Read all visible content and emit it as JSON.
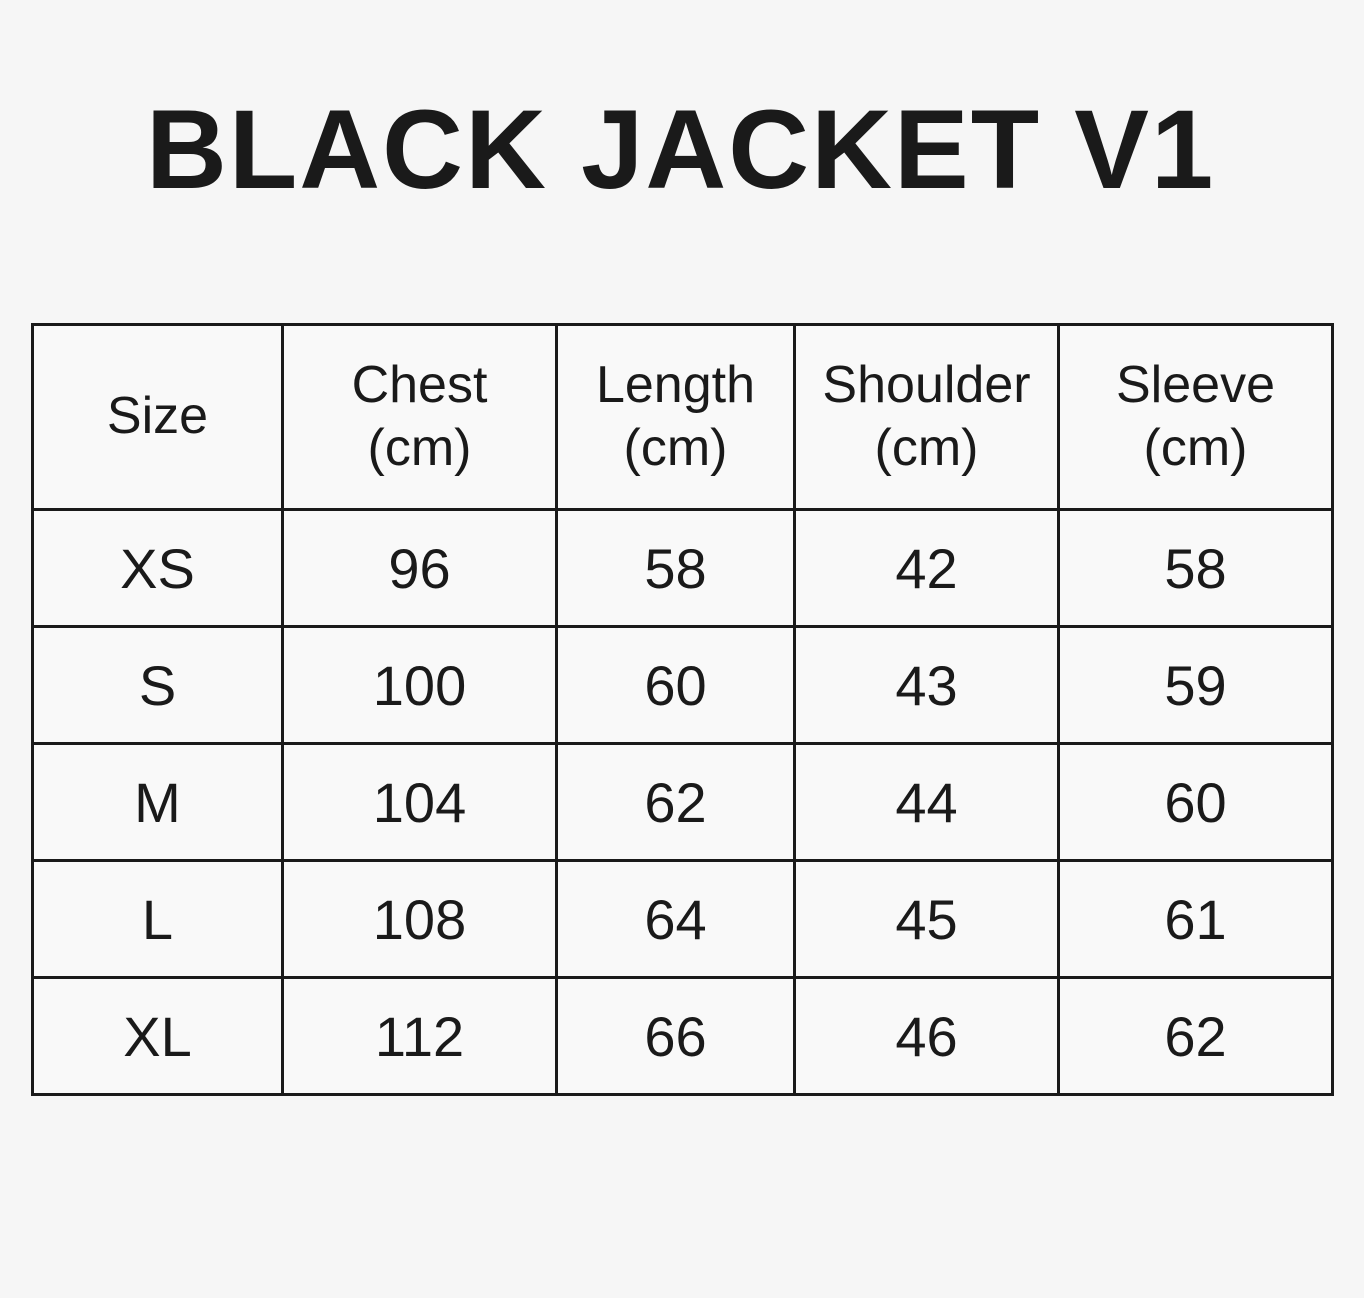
{
  "page": {
    "title": "BLACK JACKET V1",
    "background_color": "#f6f6f6",
    "text_color": "#1a1a1a",
    "border_color": "#1a1a1a"
  },
  "table": {
    "headers": [
      {
        "label": "Size",
        "unit": ""
      },
      {
        "label": "Chest",
        "unit": "(cm)"
      },
      {
        "label": "Length",
        "unit": "(cm)"
      },
      {
        "label": "Shoulder",
        "unit": "(cm)"
      },
      {
        "label": "Sleeve",
        "unit": "(cm)"
      }
    ],
    "rows": [
      [
        "XS",
        "96",
        "58",
        "42",
        "58"
      ],
      [
        "S",
        "100",
        "60",
        "43",
        "59"
      ],
      [
        "M",
        "104",
        "62",
        "44",
        "60"
      ],
      [
        "L",
        "108",
        "64",
        "45",
        "61"
      ],
      [
        "XL",
        "112",
        "66",
        "46",
        "62"
      ]
    ]
  },
  "chart_data": {
    "type": "table",
    "title": "BLACK JACKET V1",
    "columns": [
      "Size",
      "Chest (cm)",
      "Length (cm)",
      "Shoulder (cm)",
      "Sleeve (cm)"
    ],
    "rows": [
      [
        "XS",
        96,
        58,
        42,
        58
      ],
      [
        "S",
        100,
        60,
        43,
        59
      ],
      [
        "M",
        104,
        62,
        44,
        60
      ],
      [
        "L",
        108,
        64,
        45,
        61
      ],
      [
        "XL",
        112,
        66,
        46,
        62
      ]
    ],
    "units": "cm",
    "layout": {
      "grid": "on",
      "header_row": true,
      "first_column_is_size": true
    }
  }
}
